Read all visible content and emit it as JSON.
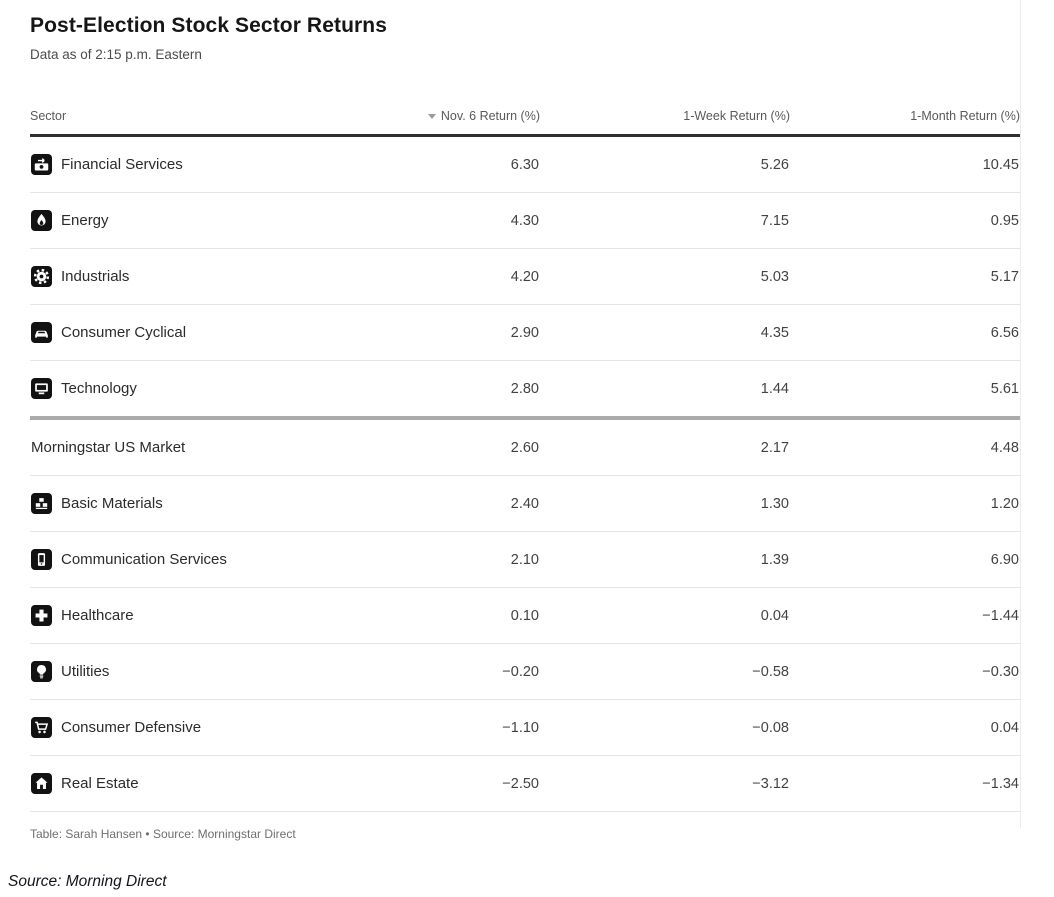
{
  "header": {
    "title": "Post-Election Stock Sector Returns",
    "subtitle": "Data as of 2:15 p.m. Eastern"
  },
  "table": {
    "columns": [
      {
        "id": "sector",
        "label": "Sector"
      },
      {
        "id": "nov6",
        "label": "Nov. 6 Return (%)",
        "sort": "descending",
        "sort_icon": "sort-descending-icon"
      },
      {
        "id": "week1",
        "label": "1-Week Return (%)"
      },
      {
        "id": "month1",
        "label": "1-Month Return (%)"
      }
    ],
    "rows": [
      {
        "sector": "Financial Services",
        "icon": "financial-services-icon",
        "nov6": "6.30",
        "week1": "5.26",
        "month1": "10.45",
        "divider": false
      },
      {
        "sector": "Energy",
        "icon": "energy-flame-icon",
        "nov6": "4.30",
        "week1": "7.15",
        "month1": "0.95",
        "divider": false
      },
      {
        "sector": "Industrials",
        "icon": "gear-icon",
        "nov6": "4.20",
        "week1": "5.03",
        "month1": "5.17",
        "divider": false
      },
      {
        "sector": "Consumer Cyclical",
        "icon": "car-icon",
        "nov6": "2.90",
        "week1": "4.35",
        "month1": "6.56",
        "divider": false
      },
      {
        "sector": "Technology",
        "icon": "computer-icon",
        "nov6": "2.80",
        "week1": "1.44",
        "month1": "5.61",
        "divider": false
      },
      {
        "sector": "Morningstar US Market",
        "icon": null,
        "nov6": "2.60",
        "week1": "2.17",
        "month1": "4.48",
        "divider": true
      },
      {
        "sector": "Basic Materials",
        "icon": "blocks-icon",
        "nov6": "2.40",
        "week1": "1.30",
        "month1": "1.20",
        "divider": false
      },
      {
        "sector": "Communication Services",
        "icon": "phone-icon",
        "nov6": "2.10",
        "week1": "1.39",
        "month1": "6.90",
        "divider": false
      },
      {
        "sector": "Healthcare",
        "icon": "medical-cross-icon",
        "nov6": "0.10",
        "week1": "0.04",
        "month1": "−1.44",
        "divider": false
      },
      {
        "sector": "Utilities",
        "icon": "lightbulb-icon",
        "nov6": "−0.20",
        "week1": "−0.58",
        "month1": "−0.30",
        "divider": false
      },
      {
        "sector": "Consumer Defensive",
        "icon": "shopping-cart-icon",
        "nov6": "−1.10",
        "week1": "−0.08",
        "month1": "0.04",
        "divider": false
      },
      {
        "sector": "Real Estate",
        "icon": "house-icon",
        "nov6": "−2.50",
        "week1": "−3.12",
        "month1": "−1.34",
        "divider": false
      }
    ],
    "credit": "Table: Sarah Hansen • Source: Morningstar Direct"
  },
  "caption": "Source: Morning Direct",
  "colors": {
    "icon_background": "#121212",
    "icon_glyph": "#ffffff",
    "header_rule": "#2f2f2f",
    "divider_rule": "#ababab",
    "row_rule": "#e4e4e4",
    "negative_sign": "−"
  },
  "chart_data": {
    "type": "table",
    "title": "Post-Election Stock Sector Returns",
    "subtitle": "Data as of 2:15 p.m. Eastern",
    "columns": [
      "Sector",
      "Nov. 6 Return (%)",
      "1-Week Return (%)",
      "1-Month Return (%)"
    ],
    "sorted_by": {
      "column": "Nov. 6 Return (%)",
      "direction": "descending"
    },
    "rows": [
      [
        "Financial Services",
        6.3,
        5.26,
        10.45
      ],
      [
        "Energy",
        4.3,
        7.15,
        0.95
      ],
      [
        "Industrials",
        4.2,
        5.03,
        5.17
      ],
      [
        "Consumer Cyclical",
        2.9,
        4.35,
        6.56
      ],
      [
        "Technology",
        2.8,
        1.44,
        5.61
      ],
      [
        "Morningstar US Market",
        2.6,
        2.17,
        4.48
      ],
      [
        "Basic Materials",
        2.4,
        1.3,
        1.2
      ],
      [
        "Communication Services",
        2.1,
        1.39,
        6.9
      ],
      [
        "Healthcare",
        0.1,
        0.04,
        -1.44
      ],
      [
        "Utilities",
        -0.2,
        -0.58,
        -0.3
      ],
      [
        "Consumer Defensive",
        -1.1,
        -0.08,
        0.04
      ],
      [
        "Real Estate",
        -2.5,
        -3.12,
        -1.34
      ]
    ],
    "credit": "Table: Sarah Hansen • Source: Morningstar Direct"
  }
}
